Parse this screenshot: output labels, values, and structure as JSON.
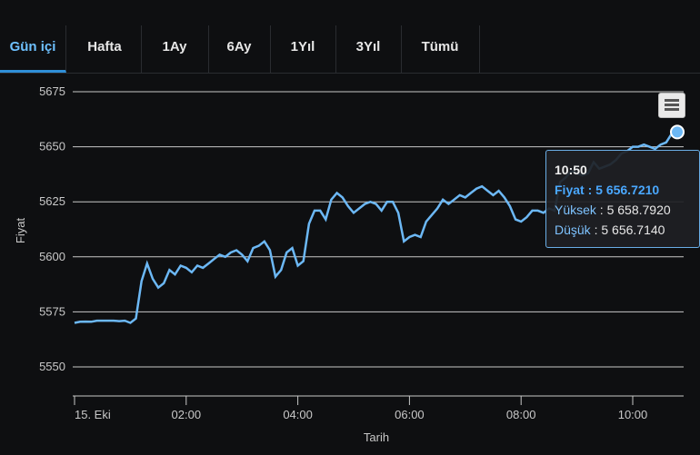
{
  "tabs": [
    {
      "label": "Gün içi",
      "active": true
    },
    {
      "label": "Hafta",
      "active": false
    },
    {
      "label": "1Ay",
      "active": false
    },
    {
      "label": "6Ay",
      "active": false
    },
    {
      "label": "1Yıl",
      "active": false
    },
    {
      "label": "3Yıl",
      "active": false
    },
    {
      "label": "Tümü",
      "active": false
    }
  ],
  "tooltip": {
    "time": "10:50",
    "price_label": "Fiyat",
    "price_value": "5 656.7210",
    "high_label": "Yüksek",
    "high_value": "5 658.7920",
    "low_label": "Düşük",
    "low_value": "5 656.7140"
  },
  "colors": {
    "line": "#6cb8f5",
    "grid": "#c8c8c8",
    "accent": "#2f8fd8",
    "background": "#0e0f11"
  },
  "chart_data": {
    "type": "line",
    "xlabel": "Tarih",
    "ylabel": "Fiyat",
    "xticks": [
      "15. Eki",
      "02:00",
      "04:00",
      "06:00",
      "08:00",
      "10:00"
    ],
    "yticks": [
      5550,
      5575,
      5600,
      5625,
      5650,
      5675
    ],
    "ylim": [
      5540,
      5675
    ],
    "xlim": [
      0,
      11.2
    ],
    "grid": true,
    "series": [
      {
        "x": [
          0,
          0.1,
          0.2,
          0.3,
          0.4,
          0.5,
          0.6,
          0.7,
          0.8,
          0.9,
          1.0,
          1.1,
          1.2,
          1.3,
          1.4,
          1.5,
          1.6,
          1.7,
          1.8,
          1.9,
          2.0,
          2.1,
          2.2,
          2.3,
          2.4,
          2.5,
          2.6,
          2.7,
          2.8,
          2.9,
          3.0,
          3.1,
          3.2,
          3.3,
          3.4,
          3.5,
          3.6,
          3.7,
          3.8,
          3.9,
          4.0,
          4.1,
          4.2,
          4.3,
          4.4,
          4.5,
          4.6,
          4.7,
          4.8,
          4.9,
          5.0,
          5.1,
          5.2,
          5.3,
          5.4,
          5.5,
          5.6,
          5.7,
          5.8,
          5.9,
          6.0,
          6.1,
          6.2,
          6.3,
          6.4,
          6.5,
          6.6,
          6.7,
          6.8,
          6.9,
          7.0,
          7.1,
          7.2,
          7.3,
          7.4,
          7.5,
          7.6,
          7.7,
          7.8,
          7.9,
          8.0,
          8.1,
          8.2,
          8.3,
          8.4,
          8.5,
          8.6,
          8.7,
          8.8,
          8.9,
          9.0,
          9.1,
          9.2,
          9.3,
          9.4,
          9.5,
          9.6,
          9.7,
          9.8,
          9.9,
          10.0,
          10.1,
          10.2,
          10.3,
          10.4,
          10.5,
          10.6,
          10.7,
          10.8
        ],
        "y": [
          5570,
          5570.5,
          5570.6,
          5570.5,
          5571,
          5571,
          5571,
          5571,
          5570.8,
          5571,
          5570,
          5572,
          5589,
          5597,
          5590,
          5586,
          5588,
          5594,
          5592,
          5596,
          5595,
          5593,
          5596,
          5595,
          5597,
          5599,
          5601,
          5600,
          5602,
          5603,
          5601,
          5598,
          5604,
          5605,
          5607,
          5603,
          5591,
          5594,
          5602,
          5604,
          5596,
          5598,
          5615,
          5621,
          5621,
          5617,
          5626,
          5629,
          5627,
          5623,
          5620,
          5622,
          5624,
          5625,
          5624,
          5621,
          5625,
          5625,
          5620,
          5607,
          5609,
          5610,
          5609,
          5616,
          5619,
          5622,
          5626,
          5624,
          5626,
          5628,
          5627,
          5629,
          5631,
          5632,
          5630,
          5628,
          5630,
          5627,
          5623,
          5617,
          5616,
          5618,
          5621,
          5621,
          5620,
          5622,
          5621,
          5634,
          5636,
          5639,
          5638,
          5637,
          5638,
          5643,
          5640,
          5641,
          5642,
          5644,
          5647,
          5648,
          5650,
          5650,
          5651,
          5650,
          5649,
          5651,
          5652,
          5656,
          5656.7
        ]
      }
    ]
  }
}
